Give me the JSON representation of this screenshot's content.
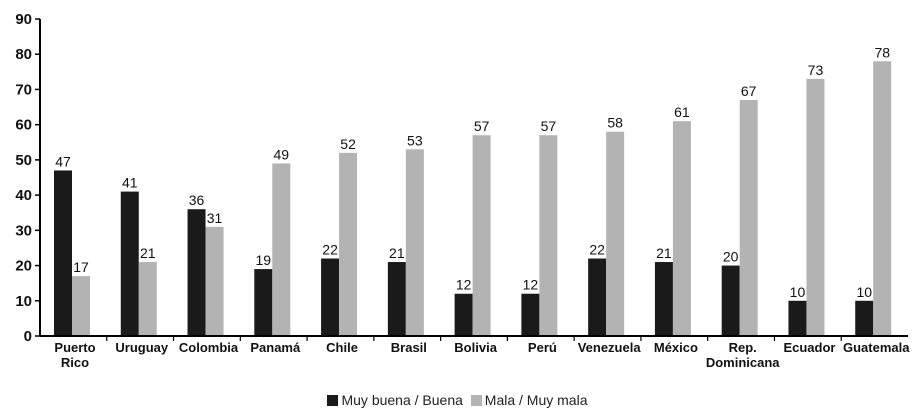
{
  "colors": {
    "series_dark": "#1a1a1a",
    "series_light": "#b3b3b3",
    "axis": "#000000"
  },
  "chart_data": {
    "type": "bar",
    "categories": [
      "Puerto Rico",
      "Uruguay",
      "Colombia",
      "Panamá",
      "Chile",
      "Brasil",
      "Bolivia",
      "Perú",
      "Venezuela",
      "México",
      "Rep. Dominicana",
      "Ecuador",
      "Guatemala"
    ],
    "category_lines": [
      [
        "Puerto",
        "Rico"
      ],
      [
        "Uruguay"
      ],
      [
        "Colombia"
      ],
      [
        "Panamá"
      ],
      [
        "Chile"
      ],
      [
        "Brasil"
      ],
      [
        "Bolivia"
      ],
      [
        "Perú"
      ],
      [
        "Venezuela"
      ],
      [
        "México"
      ],
      [
        "Rep.",
        "Dominicana"
      ],
      [
        "Ecuador"
      ],
      [
        "Guatemala"
      ]
    ],
    "series": [
      {
        "name": "Muy buena / Buena",
        "color": "#1a1a1a",
        "values": [
          47,
          41,
          36,
          19,
          22,
          21,
          12,
          12,
          22,
          21,
          20,
          10,
          10
        ]
      },
      {
        "name": "Mala / Muy mala",
        "color": "#b3b3b3",
        "values": [
          17,
          21,
          31,
          49,
          52,
          53,
          57,
          57,
          58,
          61,
          67,
          73,
          78
        ]
      }
    ],
    "ylim": [
      0,
      90
    ],
    "yticks": [
      0,
      10,
      20,
      30,
      40,
      50,
      60,
      70,
      80,
      90
    ],
    "grid": false,
    "legend_position": "bottom"
  },
  "legend": {
    "items": [
      "Muy buena / Buena",
      "Mala / Muy mala"
    ]
  }
}
